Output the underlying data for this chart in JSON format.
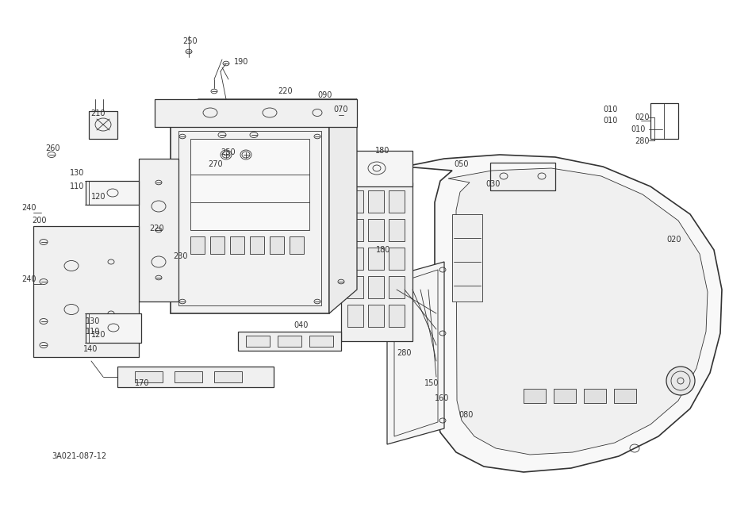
{
  "background_color": "#ffffff",
  "line_color": "#333333",
  "lw_thin": 0.6,
  "lw_med": 0.9,
  "lw_thick": 1.2,
  "font_size": 7.0,
  "diagram_code": "3A021-087-12"
}
